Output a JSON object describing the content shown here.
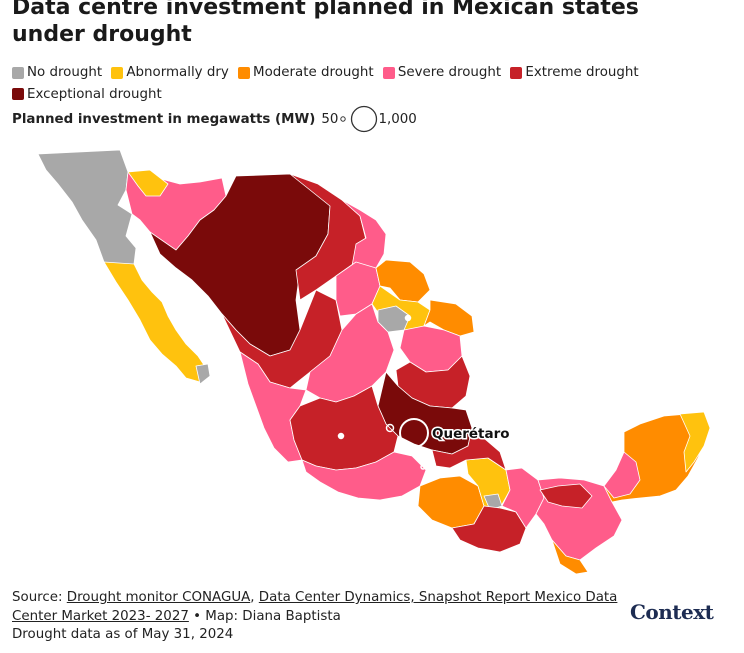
{
  "title": "Data centre investment planned in Mexican states under drought",
  "legend": {
    "items": [
      {
        "label": "No drought",
        "color": "#a8a8a8"
      },
      {
        "label": "Abnormally dry",
        "color": "#ffc20e"
      },
      {
        "label": "Moderate drought",
        "color": "#ff8c00"
      },
      {
        "label": "Severe drought",
        "color": "#ff5c8a"
      },
      {
        "label": "Extreme drought",
        "color": "#c62128"
      },
      {
        "label": "Exceptional drought",
        "color": "#7a0a0a"
      }
    ]
  },
  "size_key": {
    "label": "Planned investment in megawatts (MW)",
    "min_label": "50",
    "max_label": "1,000"
  },
  "map": {
    "highlight_label": "Querétaro",
    "sea_color": "#ffffff",
    "bubble_stroke": "#ffffff"
  },
  "footer": {
    "source_prefix": "Source: ",
    "link1": "Drought monitor CONAGUA",
    "sep1": ", ",
    "link2": "Data Center Dynamics, Snapshot Report Mexico Data Center Market 2023- 2027",
    "source_suffix": " • Map: Diana Baptista",
    "date_line": "Drought data as of May 31, 2024"
  },
  "logo": "Context"
}
